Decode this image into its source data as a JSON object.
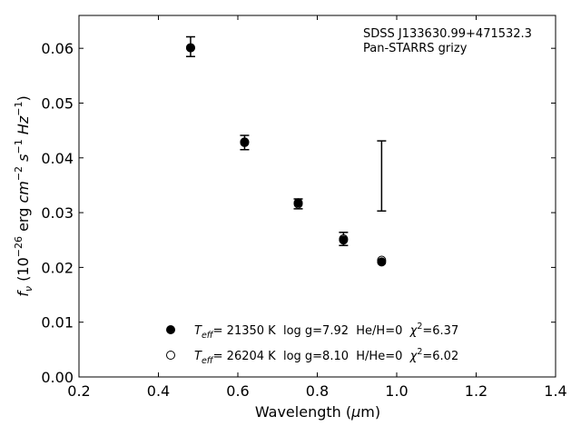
{
  "chart_data": {
    "type": "scatter",
    "xlim": [
      0.2,
      1.4
    ],
    "ylim": [
      0.0,
      0.066
    ],
    "xticks": [
      "0.2",
      "0.4",
      "0.6",
      "0.8",
      "1.0",
      "1.2",
      "1.4"
    ],
    "yticks": [
      "0.00",
      "0.01",
      "0.02",
      "0.03",
      "0.04",
      "0.05",
      "0.06"
    ],
    "annotations": [
      "SDSS J133630.99+471532.3",
      "Pan-STARRS grizy"
    ],
    "observed": [
      {
        "x": 0.481,
        "y": 0.0603,
        "err": 0.0018
      },
      {
        "x": 0.617,
        "y": 0.0428,
        "err": 0.0013
      },
      {
        "x": 0.752,
        "y": 0.0316,
        "err": 0.0009
      },
      {
        "x": 0.866,
        "y": 0.0252,
        "err": 0.0012
      },
      {
        "x": 0.962,
        "y": 0.0367,
        "err": 0.0064
      }
    ],
    "series": [
      {
        "marker": "filled-circle",
        "x": [
          0.481,
          0.617,
          0.752,
          0.866,
          0.962
        ],
        "y": [
          0.0601,
          0.0429,
          0.0318,
          0.025,
          0.021
        ]
      },
      {
        "marker": "open-circle",
        "x": [
          0.481,
          0.617,
          0.752,
          0.866,
          0.962
        ],
        "y": [
          0.0601,
          0.0428,
          0.0316,
          0.0252,
          0.0213
        ]
      }
    ],
    "legend": [
      {
        "marker": "filled-circle",
        "teff_symbol": "T",
        "teff_sub": "eff",
        "text_after_teff": "= 21350 K  log g=7.92  He/H=0  ",
        "chi_symbol": "χ",
        "chi_sup": "2",
        "chi_value": "=6.37"
      },
      {
        "marker": "open-circle",
        "teff_symbol": "T",
        "teff_sub": "eff",
        "text_after_teff": "= 26204 K  log g=8.10  H/He=0  ",
        "chi_symbol": "χ",
        "chi_sup": "2",
        "chi_value": "=6.02"
      }
    ],
    "legend_position": "lower-center",
    "grid": false
  }
}
